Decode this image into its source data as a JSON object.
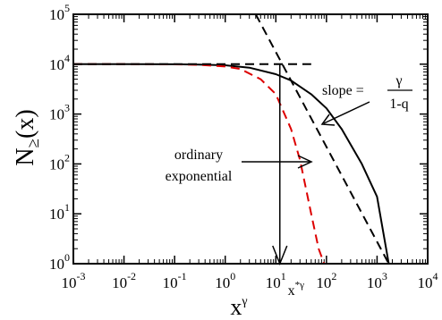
{
  "chart_data": {
    "type": "line",
    "x_scale": "log",
    "y_scale": "log",
    "xlim": [
      -3,
      4
    ],
    "ylim": [
      0,
      5
    ],
    "x_ticks": [
      {
        "base": "10",
        "exp": "-3"
      },
      {
        "base": "10",
        "exp": "-2"
      },
      {
        "base": "10",
        "exp": "-1"
      },
      {
        "base": "10",
        "exp": "0"
      },
      {
        "base": "10",
        "exp": "1"
      },
      {
        "base": "10",
        "exp": "2"
      },
      {
        "base": "10",
        "exp": "3"
      },
      {
        "base": "10",
        "exp": "4"
      }
    ],
    "y_ticks": [
      {
        "base": "10",
        "exp": "0"
      },
      {
        "base": "10",
        "exp": "1"
      },
      {
        "base": "10",
        "exp": "2"
      },
      {
        "base": "10",
        "exp": "3"
      },
      {
        "base": "10",
        "exp": "4"
      },
      {
        "base": "10",
        "exp": "5"
      }
    ],
    "xlabel": {
      "base": "x",
      "sup": "γ"
    },
    "ylabel": {
      "main": "N",
      "sub": "≥",
      "arg": "(x)"
    },
    "series": [
      {
        "style": "solid",
        "color": "#000000",
        "x": [
          0.001,
          0.01,
          0.1,
          0.3,
          1,
          3,
          10,
          20,
          50,
          100,
          200,
          500,
          1000,
          1700
        ],
        "y": [
          10000,
          10000,
          9950,
          9850,
          9500,
          8500,
          6300,
          4700,
          2500,
          1300,
          500,
          100,
          22,
          1
        ]
      },
      {
        "style": "dashed",
        "color": "#dd0000",
        "x": [
          0.001,
          0.01,
          0.1,
          0.3,
          1,
          2,
          5,
          10,
          20,
          30,
          50,
          70,
          90
        ],
        "y": [
          10000,
          10000,
          9900,
          9700,
          9000,
          8000,
          5000,
          2500,
          500,
          120,
          10,
          2,
          1
        ]
      },
      {
        "style": "dashed",
        "color": "#000000",
        "x": [
          0.001,
          50
        ],
        "y": [
          10000,
          10000
        ]
      },
      {
        "style": "dashed",
        "color": "#000000",
        "x": [
          4,
          1700
        ],
        "y": [
          100000,
          1
        ]
      }
    ],
    "marker_x": {
      "value": 12,
      "label_base": "x",
      "label_sup": "*γ"
    },
    "annotations": {
      "slope_prefix": "slope =",
      "slope_numerator": "γ",
      "slope_denominator": "1-q",
      "ordinary_line1": "ordinary",
      "ordinary_line2": "exponential"
    },
    "grid": false,
    "legend": "none"
  }
}
